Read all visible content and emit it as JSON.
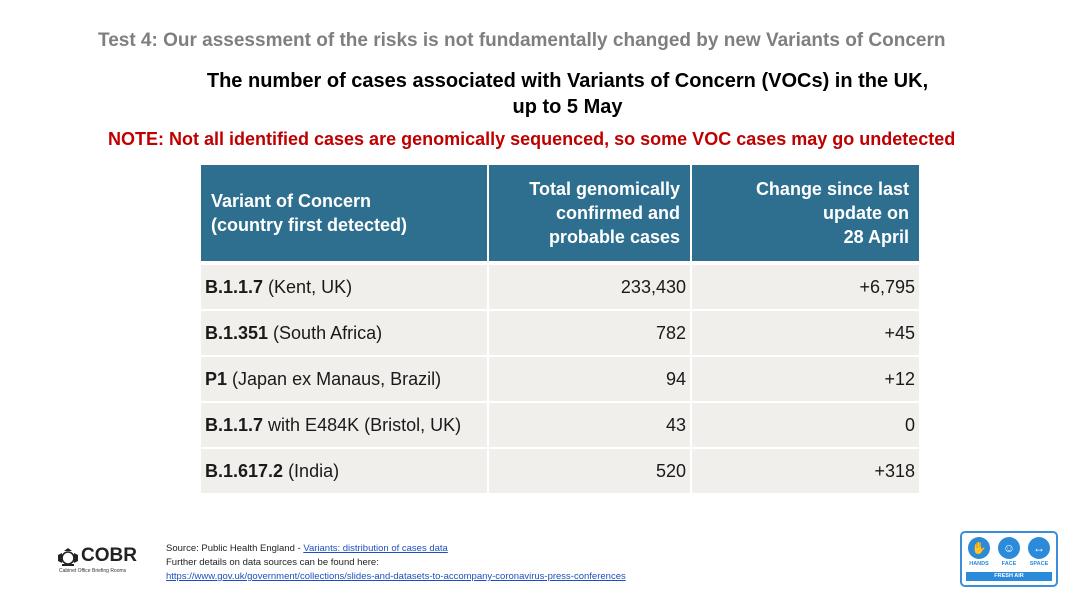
{
  "slide": {
    "test_title": "Test 4: Our assessment of the risks is not fundamentally changed by new Variants of Concern",
    "title_line1": "The number of cases associated with Variants of Concern (VOCs) in the UK,",
    "title_line2": "up to 5 May",
    "note": "NOTE: Not all identified cases are genomically sequenced, so some VOC cases may go undetected"
  },
  "table": {
    "headers": {
      "col1_line1": "Variant of Concern",
      "col1_line2": "(country first detected)",
      "col2_line1": "Total genomically",
      "col2_line2": "confirmed and",
      "col2_line3": "probable cases",
      "col3_line1": "Change since last",
      "col3_line2": "update on",
      "col3_line3": "28 April"
    },
    "rows": [
      {
        "variant": "B.1.1.7",
        "detail": " (Kent, UK)",
        "total": "233,430",
        "change": "+6,795"
      },
      {
        "variant": "B.1.351",
        "detail": " (South Africa)",
        "total": "782",
        "change": "+45"
      },
      {
        "variant": "P1",
        "detail": " (Japan ex Manaus, Brazil)",
        "total": "94",
        "change": "+12"
      },
      {
        "variant": "B.1.1.7",
        "detail": " with E484K (Bristol, UK)",
        "total": "43",
        "change": "0"
      },
      {
        "variant": "B.1.617.2",
        "detail": " (India)",
        "total": "520",
        "change": "+318"
      }
    ]
  },
  "footer": {
    "cobr_word": "COBR",
    "cobr_sub": "Cabinet Office Briefing Rooms",
    "source_prefix": "Source: Public Health England - ",
    "source_link": "Variants: distribution of cases data",
    "further": "Further details on data sources can be found here:",
    "url": "https://www.gov.uk/government/collections/slides-and-datasets-to-accompany-coronavirus-press-conferences",
    "hfs": {
      "hands": "HANDS",
      "face": "FACE",
      "space": "SPACE",
      "fresh_air": "FRESH AIR"
    }
  }
}
